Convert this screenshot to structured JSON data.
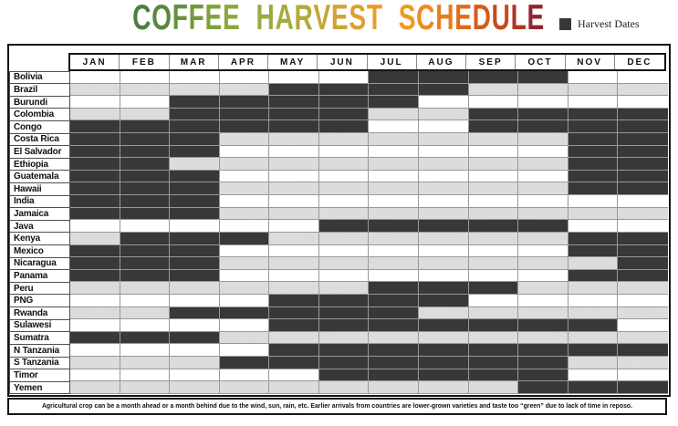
{
  "title": {
    "text": "COFFEE HARVEST SCHEDULE",
    "letters": [
      {
        "ch": "C",
        "color": "#4E7E3B"
      },
      {
        "ch": "O",
        "color": "#5A873C"
      },
      {
        "ch": "F",
        "color": "#66903D"
      },
      {
        "ch": "F",
        "color": "#73983E"
      },
      {
        "ch": "E",
        "color": "#7FA03F"
      },
      {
        "ch": "E",
        "color": "#8CA83F"
      },
      {
        "ch": " ",
        "color": ""
      },
      {
        "ch": "H",
        "color": "#98AB3E"
      },
      {
        "ch": "A",
        "color": "#A6AB3C"
      },
      {
        "ch": "R",
        "color": "#B4AA39"
      },
      {
        "ch": "V",
        "color": "#C2A737"
      },
      {
        "ch": "E",
        "color": "#D0A434"
      },
      {
        "ch": "S",
        "color": "#DEA02F"
      },
      {
        "ch": "T",
        "color": "#EA9E28"
      },
      {
        "ch": " ",
        "color": ""
      },
      {
        "ch": "S",
        "color": "#F09A22"
      },
      {
        "ch": "C",
        "color": "#EC8C20"
      },
      {
        "ch": "H",
        "color": "#E67D1F"
      },
      {
        "ch": "E",
        "color": "#DE6D1E"
      },
      {
        "ch": "D",
        "color": "#D45C1D"
      },
      {
        "ch": "U",
        "color": "#C6491E"
      },
      {
        "ch": "L",
        "color": "#B13524"
      },
      {
        "ch": "E",
        "color": "#8E2531"
      }
    ]
  },
  "legend": {
    "label": "Harvest Dates",
    "swatch_color": "#383838"
  },
  "footnote": "Agricultural crop can be a month ahead or a month behind due to the wind, sun, rain, etc.  Earlier arrivals from countries are lower-grown varieties and taste too “green” due to lack of time in reposo.",
  "colors": {
    "harvest_cell": "#383838",
    "alt_row_hatch": "#dedede",
    "grid_line": "#989898",
    "frame": "#141414"
  },
  "chart_data": {
    "type": "heatmap",
    "title": "COFFEE HARVEST SCHEDULE",
    "legend": "Harvest Dates",
    "x_labels": [
      "JAN",
      "FEB",
      "MAR",
      "APR",
      "MAY",
      "JUN",
      "JUL",
      "AUG",
      "SEP",
      "OCT",
      "NOV",
      "DEC"
    ],
    "y_labels": [
      "Bolivia",
      "Brazil",
      "Burundi",
      "Colombia",
      "Congo",
      "Costa Rica",
      "El Salvador",
      "Ethiopia",
      "Guatemala",
      "Hawaii",
      "India",
      "Jamaica",
      "Java",
      "Kenya",
      "Mexico",
      "Nicaragua",
      "Panama",
      "Peru",
      "PNG",
      "Rwanda",
      "Sulawesi",
      "Sumatra",
      "N Tanzania",
      "S Tanzania",
      "Timor",
      "Yemen"
    ],
    "value_meaning": "1 = harvest month (dark cell), 0 = no harvest",
    "values": [
      [
        0,
        0,
        0,
        0,
        0,
        0,
        1,
        1,
        1,
        1,
        0,
        0
      ],
      [
        0,
        0,
        0,
        0,
        1,
        1,
        1,
        1,
        0,
        0,
        0,
        0
      ],
      [
        0,
        0,
        1,
        1,
        1,
        1,
        1,
        0,
        0,
        0,
        0,
        0
      ],
      [
        0,
        0,
        1,
        1,
        1,
        1,
        0,
        0,
        1,
        1,
        1,
        1
      ],
      [
        1,
        1,
        1,
        1,
        1,
        1,
        0,
        0,
        1,
        1,
        1,
        1
      ],
      [
        1,
        1,
        1,
        0,
        0,
        0,
        0,
        0,
        0,
        0,
        1,
        1
      ],
      [
        1,
        1,
        1,
        0,
        0,
        0,
        0,
        0,
        0,
        0,
        1,
        1
      ],
      [
        1,
        1,
        0,
        0,
        0,
        0,
        0,
        0,
        0,
        0,
        1,
        1
      ],
      [
        1,
        1,
        1,
        0,
        0,
        0,
        0,
        0,
        0,
        0,
        1,
        1
      ],
      [
        1,
        1,
        1,
        0,
        0,
        0,
        0,
        0,
        0,
        0,
        1,
        1
      ],
      [
        1,
        1,
        1,
        0,
        0,
        0,
        0,
        0,
        0,
        0,
        0,
        0
      ],
      [
        1,
        1,
        1,
        0,
        0,
        0,
        0,
        0,
        0,
        0,
        0,
        0
      ],
      [
        0,
        0,
        0,
        0,
        0,
        1,
        1,
        1,
        1,
        1,
        0,
        0
      ],
      [
        0,
        1,
        1,
        1,
        0,
        0,
        0,
        0,
        0,
        0,
        1,
        1
      ],
      [
        1,
        1,
        1,
        0,
        0,
        0,
        0,
        0,
        0,
        0,
        1,
        1
      ],
      [
        1,
        1,
        1,
        0,
        0,
        0,
        0,
        0,
        0,
        0,
        0,
        1
      ],
      [
        1,
        1,
        1,
        0,
        0,
        0,
        0,
        0,
        0,
        0,
        1,
        1
      ],
      [
        0,
        0,
        0,
        0,
        0,
        0,
        1,
        1,
        1,
        0,
        0,
        0
      ],
      [
        0,
        0,
        0,
        0,
        1,
        1,
        1,
        1,
        0,
        0,
        0,
        0
      ],
      [
        0,
        0,
        1,
        1,
        1,
        1,
        1,
        0,
        0,
        0,
        0,
        0
      ],
      [
        0,
        0,
        0,
        0,
        1,
        1,
        1,
        1,
        1,
        1,
        1,
        0
      ],
      [
        1,
        1,
        1,
        0,
        0,
        0,
        0,
        0,
        0,
        0,
        0,
        0
      ],
      [
        0,
        0,
        0,
        0,
        1,
        1,
        1,
        1,
        1,
        1,
        1,
        1
      ],
      [
        0,
        0,
        0,
        1,
        1,
        1,
        1,
        1,
        1,
        1,
        0,
        0
      ],
      [
        0,
        0,
        0,
        0,
        0,
        1,
        1,
        1,
        1,
        1,
        0,
        0
      ],
      [
        0,
        0,
        0,
        0,
        0,
        0,
        0,
        0,
        0,
        1,
        1,
        1
      ]
    ]
  }
}
